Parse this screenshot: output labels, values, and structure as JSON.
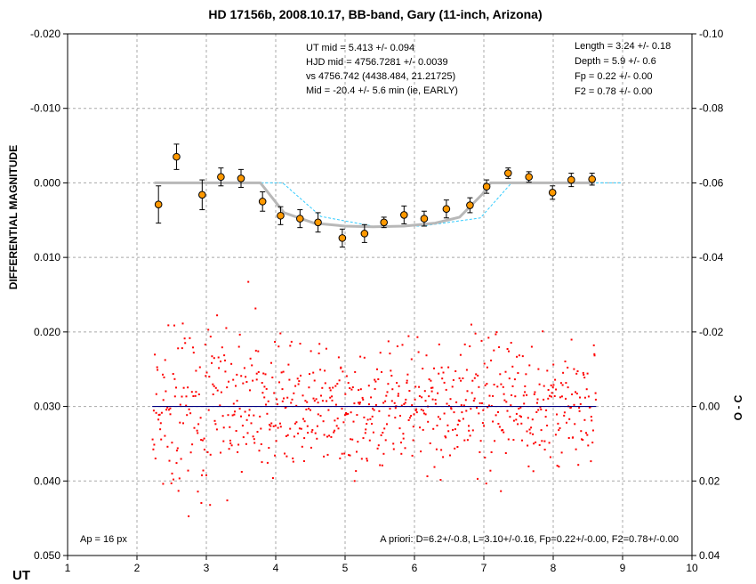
{
  "chart_data": {
    "type": "scatter",
    "title": "HD 17156b, 2008.10.17, BB-band, Gary (11-inch, Arizona)",
    "xlabel": "UT",
    "ylabel_left": "DIFFERENTIAL MAGNITUDE",
    "ylabel_right": "O - C",
    "xlim": [
      1,
      10
    ],
    "ylim_left": [
      -0.02,
      0.05
    ],
    "ylim_right": [
      -0.1,
      0.04
    ],
    "y_left_inverted": true,
    "y_right_inverted": true,
    "grid": true,
    "x_ticks": [
      "1",
      "2",
      "3",
      "4",
      "5",
      "6",
      "7",
      "8",
      "9",
      "10"
    ],
    "y_left_ticks": [
      "-0.020",
      "-0.010",
      "0.000",
      "0.010",
      "0.020",
      "0.030",
      "0.040",
      "0.050"
    ],
    "y_right_ticks": [
      "-0.10",
      "-0.08",
      "-0.06",
      "-0.04",
      "-0.02",
      "0.00",
      "0.02",
      "0.04"
    ],
    "annotations": {
      "center": [
        "UT mid = 5.413 +/- 0.094",
        "HJD mid = 4756.7281 +/- 0.0039",
        "vs 4756.742  (4438.484, 21.21725)",
        "Mid = -20.4 +/- 5.6 min (ie, EARLY)"
      ],
      "right": [
        "Length = 3.24 +/- 0.18",
        "Depth = 5.9 +/- 0.6",
        "Fp = 0.22 +/- 0.00",
        "F2 = 0.78 +/- 0.00"
      ],
      "bottom_left": "Ap = 16 px",
      "bottom_right": "A priori: D=6.2+/-0.8, L=3.10+/-0.16, Fp=0.22+/-0.00, F2=0.78+/-0.00"
    },
    "series": [
      {
        "kind": "binned_points",
        "color": "#FF9900",
        "x": [
          2.31,
          2.57,
          2.94,
          3.21,
          3.5,
          3.81,
          4.07,
          4.35,
          4.61,
          4.96,
          5.28,
          5.56,
          5.85,
          6.14,
          6.46,
          6.8,
          7.04,
          7.35,
          7.65,
          7.99,
          8.26,
          8.56
        ],
        "y": [
          0.0029,
          -0.0035,
          0.0016,
          -0.0008,
          -0.0006,
          0.0025,
          0.0044,
          0.0048,
          0.0053,
          0.0074,
          0.0068,
          0.0053,
          0.0043,
          0.0048,
          0.0035,
          0.003,
          0.0005,
          -0.0013,
          -0.0008,
          0.0013,
          -0.0004,
          -0.0005
        ],
        "err": [
          0.0025,
          0.0017,
          0.002,
          0.0012,
          0.0012,
          0.0013,
          0.0012,
          0.0012,
          0.0013,
          0.0012,
          0.0012,
          0.0007,
          0.0012,
          0.001,
          0.0012,
          0.001,
          0.0009,
          0.0007,
          0.0007,
          0.0009,
          0.0009,
          0.0008
        ]
      },
      {
        "kind": "model_fit",
        "color": "#B8B8B8",
        "x": [
          2.25,
          3.78,
          4.12,
          4.55,
          5.0,
          5.4,
          5.85,
          6.3,
          6.65,
          6.98,
          7.1,
          8.6
        ],
        "y": [
          0.0,
          0.0,
          0.004,
          0.0054,
          0.0058,
          0.0059,
          0.0058,
          0.0054,
          0.0046,
          0.0015,
          0.0,
          0.0
        ]
      },
      {
        "kind": "a_priori_model",
        "color": "#33CCFF",
        "x": [
          2.25,
          4.1,
          4.65,
          5.4,
          6.1,
          6.95,
          7.4,
          9.0
        ],
        "y": [
          0.0,
          0.0,
          0.0045,
          0.0058,
          0.0058,
          0.0047,
          0.0,
          0.0
        ]
      },
      {
        "kind": "raw_points",
        "color": "#FF0000",
        "n": 760,
        "x_range": [
          2.22,
          8.62
        ],
        "center_y": 0.03,
        "spread": 0.0045
      },
      {
        "kind": "zero_line",
        "color": "#000080",
        "x": [
          2.22,
          8.62
        ],
        "y": [
          0.03,
          0.03
        ]
      }
    ]
  }
}
